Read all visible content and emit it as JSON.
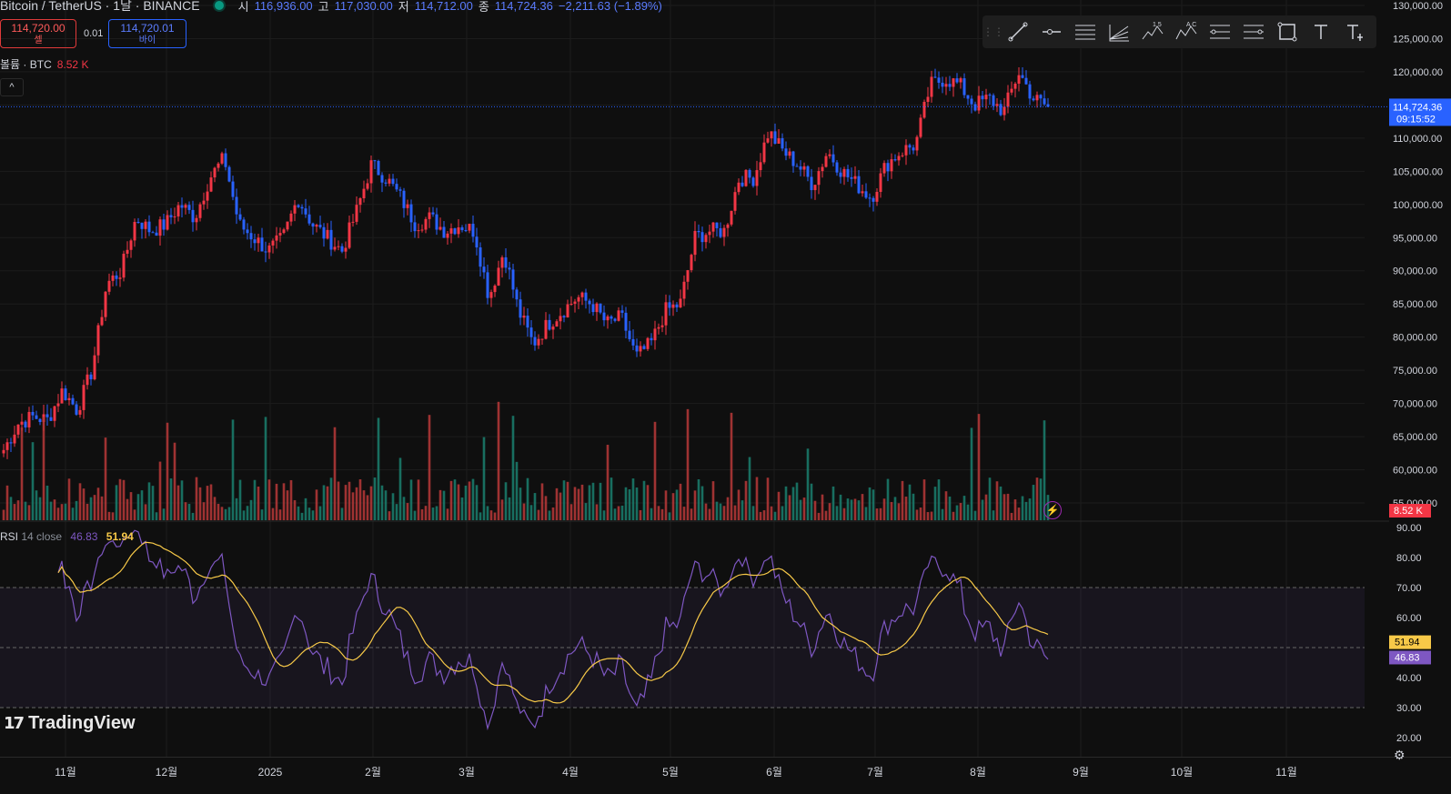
{
  "header": {
    "symbol": "Bitcoin / TetherUS · 1날 · BINANCE",
    "open_label": "시",
    "open": "116,936.00",
    "high_label": "고",
    "high": "117,030.00",
    "low_label": "저",
    "low": "114,712.00",
    "close_label": "종",
    "close": "114,724.36",
    "change": "−2,211.63 (−1.89%)"
  },
  "trade": {
    "sell_price": "114,720.00",
    "sell_label": "셀",
    "spread": "0.01",
    "buy_price": "114,720.01",
    "buy_label": "바이"
  },
  "volume_legend": {
    "name": "볼륨 · BTC",
    "value": "8.52 K"
  },
  "collapse_icon": "chevron-up-icon",
  "rsi_legend": {
    "name": "RSI",
    "params": "14 close",
    "rsi": "46.83",
    "ma": "51.94"
  },
  "toolbar": [
    "trend-line-icon",
    "horizontal-ray-icon",
    "parallel-channel-icon",
    "pitchfork-icon",
    "elliott-wave-icon",
    "xabcd-pattern-icon",
    "fib-retracement-icon",
    "fib-extension-icon",
    "rectangle-icon",
    "text-icon",
    "text-note-icon"
  ],
  "toolbar_marks": {
    "wave": "1 5",
    "pattern": "A C"
  },
  "price_axis": [
    "130,000.00",
    "125,000.00",
    "120,000.00",
    "110,000.00",
    "105,000.00",
    "100,000.00",
    "95,000.00",
    "90,000.00",
    "85,000.00",
    "80,000.00",
    "75,000.00",
    "70,000.00",
    "65,000.00",
    "60,000.00",
    "55,000.00"
  ],
  "price_tag": {
    "price": "114,724.36",
    "countdown": "09:15:52"
  },
  "volume_tag": "8.52 K",
  "rsi_axis": [
    "90.00",
    "80.00",
    "70.00",
    "60.00",
    "40.00",
    "30.00",
    "20.00"
  ],
  "rsi_tags": {
    "ma": "51.94",
    "rsi": "46.83"
  },
  "time_axis": [
    "11월",
    "12월",
    "2025",
    "2월",
    "3월",
    "4월",
    "5월",
    "6월",
    "7월",
    "8월",
    "9월",
    "10월",
    "11월"
  ],
  "logo_text": "TradingView",
  "colors": {
    "up": "#f23645",
    "down": "#2962ff",
    "vol_up": "#b83838",
    "vol_down": "#1a7f6f",
    "rsi": "#7e57c2",
    "rsi_ma": "#f7c948",
    "bg": "#0f0f0f"
  },
  "chart_data": {
    "type": "candlestick",
    "price_axis_range": [
      51000,
      131000
    ],
    "rsi_axis_range": [
      20,
      90
    ],
    "rsi_bands": [
      30,
      50,
      70
    ],
    "close_series_approx": [
      63000,
      67000,
      68000,
      67500,
      72000,
      69000,
      75000,
      88000,
      90000,
      98000,
      96000,
      97000,
      100000,
      98000,
      104000,
      107000,
      97000,
      95000,
      93000,
      95000,
      101000,
      97000,
      95000,
      93000,
      99000,
      106000,
      104000,
      101000,
      97000,
      98000,
      96000,
      97000,
      96000,
      86000,
      93000,
      84000,
      79000,
      82000,
      84000,
      86000,
      85000,
      82000,
      83000,
      77000,
      79000,
      84000,
      85000,
      95000,
      96000,
      96000,
      104000,
      104000,
      111000,
      108000,
      106000,
      103000,
      108000,
      105000,
      103000,
      101000,
      106000,
      108000,
      109000,
      118000,
      119000,
      118000,
      115000,
      116000,
      114000,
      120000,
      116000,
      114724
    ]
  }
}
